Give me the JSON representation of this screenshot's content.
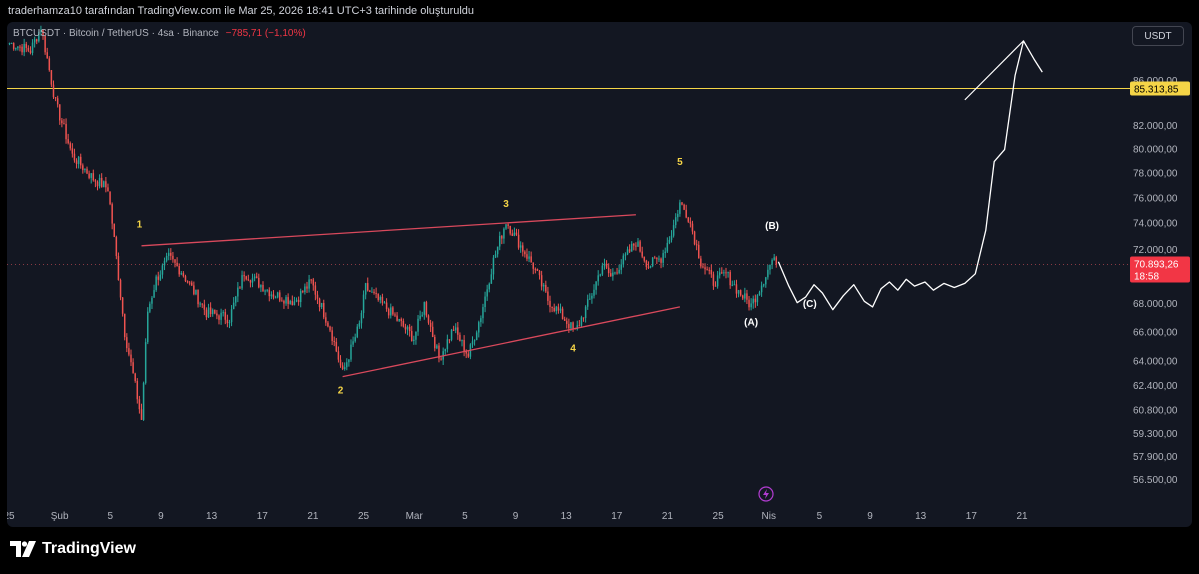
{
  "header": {
    "attribution": "traderhamza10 tarafından TradingView.com ile Mar 25, 2026 18:41 UTC+3 tarihinde oluşturuldu"
  },
  "symbol": {
    "ticker": "BTCUSDT",
    "name": "Bitcoin / TetherUS",
    "interval": "4sa",
    "exchange": "Binance",
    "change": "−785,71 (−1,10%)"
  },
  "currency_button": "USDT",
  "brand": "TradingView",
  "colors": {
    "background": "#131722",
    "up": "#26a69a",
    "down": "#ef5350",
    "accent_line": "#f5d547",
    "price_badge": "#f23645",
    "trendline": "#d9495c",
    "projection": "#ffffff"
  },
  "chart_data": {
    "type": "candlestick",
    "y_scale": "log",
    "ylim": [
      55800,
      91500
    ],
    "y_ticks": [
      "86.000,00",
      "82.000,00",
      "80.000,00",
      "78.000,00",
      "76.000,00",
      "74.000,00",
      "72.000,00",
      "68.000,00",
      "66.000,00",
      "64.000,00",
      "62.400,00",
      "60.800,00",
      "59.300,00",
      "57.900,00",
      "56.500,00"
    ],
    "x_ticks": [
      "25",
      "Şub",
      "5",
      "9",
      "13",
      "17",
      "21",
      "25",
      "Mar",
      "5",
      "9",
      "13",
      "17",
      "21",
      "25",
      "Nis",
      "5",
      "9",
      "13",
      "17",
      "21"
    ],
    "horizontal_level": {
      "value": 85313.85,
      "label": "85.313,85"
    },
    "current_price": {
      "value": 70893.26,
      "label": "70.893,26",
      "countdown": "18:58"
    },
    "swing_points": [
      [
        0,
        89500
      ],
      [
        10,
        88800
      ],
      [
        15,
        91000
      ],
      [
        22,
        84000
      ],
      [
        30,
        79500
      ],
      [
        40,
        77600
      ],
      [
        47,
        76800
      ],
      [
        55,
        66000
      ],
      [
        63,
        60200
      ],
      [
        66,
        67500
      ],
      [
        70,
        69800
      ],
      [
        76,
        71400
      ],
      [
        82,
        70400
      ],
      [
        94,
        67400
      ],
      [
        105,
        67000
      ],
      [
        112,
        70300
      ],
      [
        126,
        68700
      ],
      [
        136,
        68200
      ],
      [
        144,
        69600
      ],
      [
        153,
        66300
      ],
      [
        159,
        63200
      ],
      [
        167,
        66500
      ],
      [
        170,
        69200
      ],
      [
        175,
        68400
      ],
      [
        180,
        67700
      ],
      [
        185,
        66900
      ],
      [
        193,
        65600
      ],
      [
        198,
        68000
      ],
      [
        205,
        64200
      ],
      [
        212,
        66300
      ],
      [
        219,
        64400
      ],
      [
        225,
        67200
      ],
      [
        231,
        71200
      ],
      [
        237,
        74200
      ],
      [
        244,
        72300
      ],
      [
        250,
        70800
      ],
      [
        257,
        68300
      ],
      [
        263,
        67300
      ],
      [
        270,
        66000
      ],
      [
        277,
        68300
      ],
      [
        283,
        70900
      ],
      [
        287,
        70000
      ],
      [
        293,
        71200
      ],
      [
        299,
        72600
      ],
      [
        305,
        70800
      ],
      [
        311,
        71400
      ],
      [
        316,
        73300
      ],
      [
        320,
        75600
      ],
      [
        324,
        74600
      ],
      [
        330,
        71100
      ],
      [
        336,
        69600
      ],
      [
        342,
        70200
      ],
      [
        348,
        68900
      ],
      [
        354,
        67900
      ],
      [
        360,
        69800
      ],
      [
        364,
        71200
      ],
      [
        366,
        70900
      ]
    ],
    "wave_labels": [
      {
        "text": "1",
        "x": 62,
        "price": 73700,
        "color": "#f5d547"
      },
      {
        "text": "2",
        "x": 158,
        "price": 61900,
        "color": "#f5d547"
      },
      {
        "text": "3",
        "x": 237,
        "price": 75300,
        "color": "#f5d547"
      },
      {
        "text": "4",
        "x": 269,
        "price": 64700,
        "color": "#f5d547"
      },
      {
        "text": "5",
        "x": 320,
        "price": 78700,
        "color": "#f5d547"
      },
      {
        "text": "(A)",
        "x": 354,
        "price": 66500,
        "color": "#ffffff"
      },
      {
        "text": "(B)",
        "x": 364,
        "price": 73600,
        "color": "#ffffff"
      },
      {
        "text": "(C)",
        "x": 382,
        "price": 67800,
        "color": "#ffffff"
      }
    ],
    "trendlines": [
      {
        "from": [
          63,
          72300
        ],
        "to": [
          299,
          74700
        ]
      },
      {
        "from": [
          159,
          63000
        ],
        "to": [
          320,
          67800
        ]
      }
    ],
    "projection": [
      [
        367,
        71100
      ],
      [
        372,
        69300
      ],
      [
        376,
        68100
      ],
      [
        380,
        68500
      ],
      [
        384,
        69400
      ],
      [
        388,
        68800
      ],
      [
        393,
        67600
      ],
      [
        398,
        68600
      ],
      [
        403,
        69400
      ],
      [
        408,
        68200
      ],
      [
        412,
        67800
      ],
      [
        416,
        69100
      ],
      [
        420,
        69600
      ],
      [
        424,
        69000
      ],
      [
        428,
        69800
      ],
      [
        432,
        69300
      ],
      [
        437,
        69600
      ],
      [
        441,
        69000
      ],
      [
        446,
        69500
      ],
      [
        451,
        69200
      ],
      [
        456,
        69500
      ],
      [
        461,
        70200
      ],
      [
        466,
        73500
      ],
      [
        470,
        79000
      ],
      [
        475,
        80000
      ],
      [
        480,
        86500
      ],
      [
        484,
        89700
      ],
      [
        489,
        88000
      ],
      [
        493,
        86800
      ]
    ],
    "projection_tail": {
      "from": [
        456,
        84300
      ],
      "to": [
        484,
        89700
      ]
    }
  }
}
